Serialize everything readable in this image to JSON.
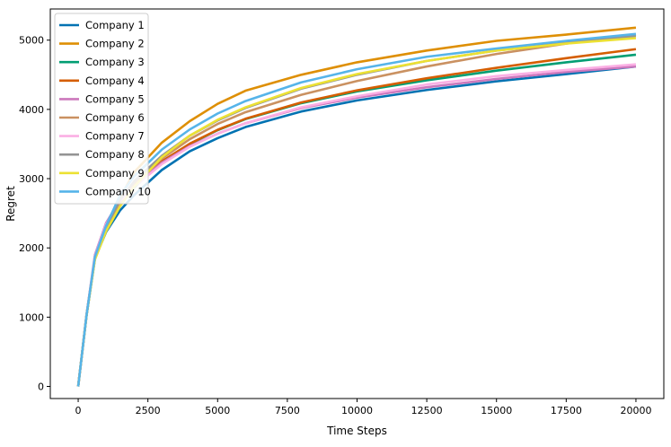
{
  "chart_data": {
    "type": "line",
    "title": "",
    "xlabel": "Time Steps",
    "ylabel": "Regret",
    "xlim": [
      -1000,
      21000
    ],
    "ylim": [
      -175,
      5450
    ],
    "xticks": [
      0,
      2500,
      5000,
      7500,
      10000,
      12500,
      15000,
      17500,
      20000
    ],
    "yticks": [
      0,
      1000,
      2000,
      3000,
      4000,
      5000
    ],
    "grid": false,
    "legend_position": "top-left",
    "x": [
      0,
      100,
      300,
      600,
      1000,
      1500,
      2000,
      3000,
      4000,
      5000,
      6000,
      8000,
      10000,
      12500,
      15000,
      17500,
      20000
    ],
    "series": [
      {
        "name": "Company 1",
        "color": "#0072b2",
        "values": [
          0,
          340,
          1025,
          1845,
          2230,
          2540,
          2760,
          3125,
          3395,
          3585,
          3745,
          3970,
          4130,
          4280,
          4405,
          4510,
          4620
        ]
      },
      {
        "name": "Company 2",
        "color": "#de8f05",
        "values": [
          0,
          345,
          1030,
          1850,
          2250,
          2720,
          3090,
          3520,
          3830,
          4080,
          4270,
          4500,
          4680,
          4850,
          4990,
          5080,
          5180
        ]
      },
      {
        "name": "Company 3",
        "color": "#029e73",
        "values": [
          0,
          345,
          1030,
          1860,
          2290,
          2640,
          2870,
          3240,
          3500,
          3700,
          3860,
          4090,
          4260,
          4420,
          4560,
          4680,
          4790
        ]
      },
      {
        "name": "Company 4",
        "color": "#d55e00",
        "values": [
          0,
          345,
          1030,
          1860,
          2300,
          2650,
          2880,
          3250,
          3505,
          3705,
          3865,
          4100,
          4275,
          4450,
          4600,
          4740,
          4870
        ]
      },
      {
        "name": "Company 5",
        "color": "#cc78bc",
        "values": [
          0,
          345,
          1035,
          1900,
          2360,
          2690,
          2900,
          3230,
          3470,
          3650,
          3800,
          4020,
          4170,
          4320,
          4440,
          4540,
          4620
        ]
      },
      {
        "name": "Company 6",
        "color": "#ca9161",
        "values": [
          0,
          345,
          1030,
          1855,
          2280,
          2650,
          2920,
          3290,
          3570,
          3790,
          3960,
          4210,
          4410,
          4620,
          4800,
          4950,
          5080
        ]
      },
      {
        "name": "Company 7",
        "color": "#fbafe4",
        "values": [
          0,
          345,
          1035,
          1880,
          2340,
          2680,
          2880,
          3210,
          3460,
          3650,
          3800,
          4030,
          4190,
          4360,
          4480,
          4570,
          4650
        ]
      },
      {
        "name": "Company 8",
        "color": "#949494",
        "values": [
          0,
          345,
          1030,
          1860,
          2300,
          2690,
          2960,
          3330,
          3620,
          3840,
          4020,
          4300,
          4500,
          4700,
          4850,
          4960,
          5060
        ]
      },
      {
        "name": "Company 9",
        "color": "#ece133",
        "values": [
          0,
          345,
          1025,
          1830,
          2240,
          2600,
          2880,
          3310,
          3620,
          3850,
          4030,
          4310,
          4510,
          4700,
          4850,
          4950,
          5030
        ]
      },
      {
        "name": "Company 10",
        "color": "#56b4e9",
        "values": [
          0,
          345,
          1030,
          1870,
          2320,
          2760,
          3030,
          3420,
          3710,
          3940,
          4120,
          4390,
          4580,
          4760,
          4880,
          4990,
          5090
        ]
      }
    ]
  }
}
